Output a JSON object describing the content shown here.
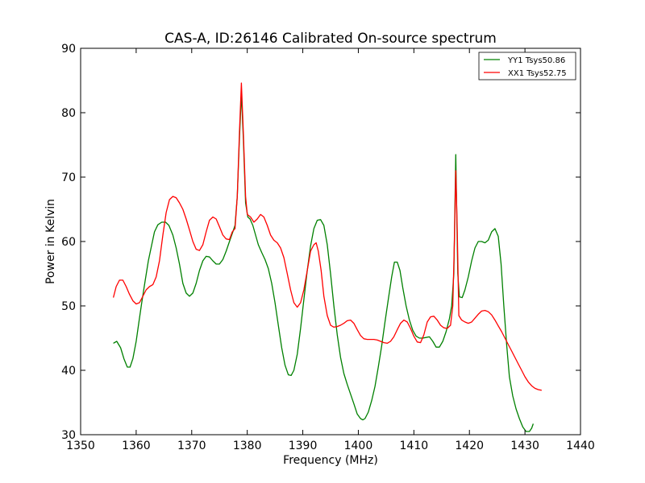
{
  "chart_data": {
    "type": "line",
    "title": "CAS-A, ID:26146 Calibrated On-source spectrum",
    "xlabel": "Frequency (MHz)",
    "ylabel": "Power in Kelvin",
    "xlim": [
      1350,
      1440
    ],
    "ylim": [
      30,
      90
    ],
    "xticks": [
      1350,
      1360,
      1370,
      1380,
      1390,
      1400,
      1410,
      1420,
      1430,
      1440
    ],
    "yticks": [
      30,
      40,
      50,
      60,
      70,
      80,
      90
    ],
    "grid": false,
    "legend": "top-right",
    "series": [
      {
        "name": "YY1 Tsys50.86",
        "color": "#008000",
        "points": [
          [
            1355.9,
            44.2
          ],
          [
            1356.5,
            44.5
          ],
          [
            1357.2,
            43.5
          ],
          [
            1357.8,
            41.8
          ],
          [
            1358.4,
            40.5
          ],
          [
            1358.9,
            40.5
          ],
          [
            1359.4,
            41.8
          ],
          [
            1360.0,
            44.5
          ],
          [
            1360.5,
            47.5
          ],
          [
            1361.0,
            50.5
          ],
          [
            1361.6,
            53.8
          ],
          [
            1362.2,
            57.0
          ],
          [
            1362.8,
            59.5
          ],
          [
            1363.3,
            61.5
          ],
          [
            1363.9,
            62.6
          ],
          [
            1364.6,
            63.0
          ],
          [
            1365.3,
            63.0
          ],
          [
            1365.9,
            62.5
          ],
          [
            1366.6,
            61.0
          ],
          [
            1367.2,
            59.0
          ],
          [
            1367.8,
            56.5
          ],
          [
            1368.4,
            53.5
          ],
          [
            1369.0,
            52.0
          ],
          [
            1369.6,
            51.5
          ],
          [
            1370.2,
            52.0
          ],
          [
            1370.8,
            53.5
          ],
          [
            1371.4,
            55.5
          ],
          [
            1372.0,
            57.0
          ],
          [
            1372.6,
            57.7
          ],
          [
            1373.2,
            57.6
          ],
          [
            1373.8,
            57.0
          ],
          [
            1374.4,
            56.5
          ],
          [
            1375.0,
            56.5
          ],
          [
            1375.6,
            57.2
          ],
          [
            1376.2,
            58.5
          ],
          [
            1376.8,
            60.0
          ],
          [
            1377.4,
            61.5
          ],
          [
            1377.8,
            62.5
          ],
          [
            1378.2,
            67.0
          ],
          [
            1378.6,
            76.0
          ],
          [
            1378.95,
            83.0
          ],
          [
            1379.3,
            76.0
          ],
          [
            1379.7,
            66.0
          ],
          [
            1380.1,
            63.8
          ],
          [
            1380.5,
            63.5
          ],
          [
            1381.0,
            62.5
          ],
          [
            1381.5,
            61.0
          ],
          [
            1382.0,
            59.5
          ],
          [
            1382.6,
            58.3
          ],
          [
            1383.2,
            57.2
          ],
          [
            1383.8,
            55.8
          ],
          [
            1384.4,
            53.5
          ],
          [
            1385.0,
            50.5
          ],
          [
            1385.6,
            47.0
          ],
          [
            1386.2,
            43.5
          ],
          [
            1386.8,
            40.8
          ],
          [
            1387.4,
            39.3
          ],
          [
            1387.9,
            39.2
          ],
          [
            1388.4,
            40.0
          ],
          [
            1389.0,
            42.5
          ],
          [
            1389.6,
            46.5
          ],
          [
            1390.2,
            51.0
          ],
          [
            1390.8,
            55.5
          ],
          [
            1391.4,
            59.3
          ],
          [
            1392.0,
            62.0
          ],
          [
            1392.6,
            63.3
          ],
          [
            1393.2,
            63.4
          ],
          [
            1393.8,
            62.5
          ],
          [
            1394.4,
            59.5
          ],
          [
            1395.0,
            55.0
          ],
          [
            1395.6,
            50.0
          ],
          [
            1396.2,
            45.5
          ],
          [
            1396.8,
            42.0
          ],
          [
            1397.4,
            39.5
          ],
          [
            1398.0,
            37.8
          ],
          [
            1398.6,
            36.3
          ],
          [
            1399.2,
            34.8
          ],
          [
            1399.8,
            33.2
          ],
          [
            1400.4,
            32.5
          ],
          [
            1400.8,
            32.3
          ],
          [
            1401.2,
            32.5
          ],
          [
            1401.8,
            33.5
          ],
          [
            1402.4,
            35.3
          ],
          [
            1403.0,
            37.5
          ],
          [
            1403.6,
            40.5
          ],
          [
            1404.2,
            43.8
          ],
          [
            1404.8,
            47.5
          ],
          [
            1405.4,
            51.0
          ],
          [
            1406.0,
            54.5
          ],
          [
            1406.5,
            56.8
          ],
          [
            1407.0,
            56.8
          ],
          [
            1407.5,
            55.5
          ],
          [
            1408.0,
            52.8
          ],
          [
            1408.6,
            50.0
          ],
          [
            1409.2,
            47.8
          ],
          [
            1409.8,
            46.2
          ],
          [
            1410.4,
            45.3
          ],
          [
            1411.0,
            45.0
          ],
          [
            1411.6,
            45.0
          ],
          [
            1412.2,
            45.1
          ],
          [
            1412.8,
            45.2
          ],
          [
            1413.4,
            44.5
          ],
          [
            1414.0,
            43.6
          ],
          [
            1414.6,
            43.6
          ],
          [
            1415.2,
            44.5
          ],
          [
            1415.8,
            46.0
          ],
          [
            1416.4,
            48.0
          ],
          [
            1416.8,
            50.0
          ],
          [
            1417.2,
            55.0
          ],
          [
            1417.55,
            73.5
          ],
          [
            1417.9,
            55.0
          ],
          [
            1418.2,
            51.4
          ],
          [
            1418.7,
            51.3
          ],
          [
            1419.2,
            52.5
          ],
          [
            1419.8,
            54.5
          ],
          [
            1420.4,
            57.0
          ],
          [
            1421.0,
            59.0
          ],
          [
            1421.6,
            60.0
          ],
          [
            1422.2,
            60.0
          ],
          [
            1422.8,
            59.8
          ],
          [
            1423.4,
            60.2
          ],
          [
            1424.0,
            61.5
          ],
          [
            1424.6,
            62.0
          ],
          [
            1425.2,
            60.8
          ],
          [
            1425.7,
            56.5
          ],
          [
            1426.2,
            50.0
          ],
          [
            1426.7,
            44.0
          ],
          [
            1427.2,
            39.0
          ],
          [
            1427.8,
            36.0
          ],
          [
            1428.4,
            34.0
          ],
          [
            1429.0,
            32.5
          ],
          [
            1429.6,
            31.2
          ],
          [
            1430.2,
            30.5
          ],
          [
            1430.8,
            30.5
          ],
          [
            1431.2,
            31.0
          ],
          [
            1431.5,
            31.7
          ]
        ]
      },
      {
        "name": "XX1 Tsys52.75",
        "color": "#ff0000",
        "points": [
          [
            1355.9,
            51.3
          ],
          [
            1356.4,
            53.0
          ],
          [
            1357.0,
            54.0
          ],
          [
            1357.6,
            54.0
          ],
          [
            1358.2,
            53.0
          ],
          [
            1358.8,
            51.8
          ],
          [
            1359.4,
            50.8
          ],
          [
            1360.0,
            50.3
          ],
          [
            1360.6,
            50.5
          ],
          [
            1361.2,
            51.5
          ],
          [
            1361.8,
            52.5
          ],
          [
            1362.4,
            53.0
          ],
          [
            1363.0,
            53.3
          ],
          [
            1363.6,
            54.5
          ],
          [
            1364.2,
            57.0
          ],
          [
            1364.8,
            61.0
          ],
          [
            1365.4,
            64.5
          ],
          [
            1366.0,
            66.5
          ],
          [
            1366.6,
            67.0
          ],
          [
            1367.2,
            66.8
          ],
          [
            1367.8,
            66.0
          ],
          [
            1368.4,
            65.0
          ],
          [
            1369.0,
            63.5
          ],
          [
            1369.6,
            61.8
          ],
          [
            1370.2,
            60.0
          ],
          [
            1370.8,
            58.8
          ],
          [
            1371.4,
            58.6
          ],
          [
            1372.0,
            59.5
          ],
          [
            1372.6,
            61.5
          ],
          [
            1373.2,
            63.3
          ],
          [
            1373.8,
            63.8
          ],
          [
            1374.4,
            63.5
          ],
          [
            1375.0,
            62.3
          ],
          [
            1375.6,
            61.0
          ],
          [
            1376.2,
            60.4
          ],
          [
            1376.8,
            60.3
          ],
          [
            1377.3,
            61.5
          ],
          [
            1377.8,
            62.0
          ],
          [
            1378.2,
            67.0
          ],
          [
            1378.6,
            77.0
          ],
          [
            1378.95,
            84.6
          ],
          [
            1379.3,
            77.0
          ],
          [
            1379.7,
            67.0
          ],
          [
            1380.0,
            64.2
          ],
          [
            1380.6,
            63.8
          ],
          [
            1381.2,
            63.0
          ],
          [
            1381.8,
            63.5
          ],
          [
            1382.4,
            64.2
          ],
          [
            1383.0,
            63.8
          ],
          [
            1383.6,
            62.5
          ],
          [
            1384.2,
            61.0
          ],
          [
            1384.8,
            60.2
          ],
          [
            1385.4,
            59.8
          ],
          [
            1386.0,
            59.0
          ],
          [
            1386.6,
            57.5
          ],
          [
            1387.2,
            55.0
          ],
          [
            1387.8,
            52.5
          ],
          [
            1388.4,
            50.5
          ],
          [
            1389.0,
            49.8
          ],
          [
            1389.6,
            50.5
          ],
          [
            1390.2,
            52.5
          ],
          [
            1390.8,
            55.5
          ],
          [
            1391.4,
            58.5
          ],
          [
            1392.0,
            59.5
          ],
          [
            1392.4,
            59.8
          ],
          [
            1392.8,
            58.5
          ],
          [
            1393.3,
            55.5
          ],
          [
            1393.8,
            51.5
          ],
          [
            1394.4,
            48.5
          ],
          [
            1395.0,
            47.0
          ],
          [
            1395.6,
            46.7
          ],
          [
            1396.2,
            46.8
          ],
          [
            1396.8,
            47.0
          ],
          [
            1397.4,
            47.3
          ],
          [
            1398.0,
            47.7
          ],
          [
            1398.6,
            47.8
          ],
          [
            1399.2,
            47.3
          ],
          [
            1399.8,
            46.3
          ],
          [
            1400.4,
            45.4
          ],
          [
            1401.0,
            44.9
          ],
          [
            1401.6,
            44.8
          ],
          [
            1402.2,
            44.8
          ],
          [
            1402.8,
            44.8
          ],
          [
            1403.4,
            44.7
          ],
          [
            1404.0,
            44.5
          ],
          [
            1404.6,
            44.3
          ],
          [
            1405.2,
            44.2
          ],
          [
            1405.8,
            44.5
          ],
          [
            1406.4,
            45.2
          ],
          [
            1407.0,
            46.3
          ],
          [
            1407.6,
            47.3
          ],
          [
            1408.2,
            47.8
          ],
          [
            1408.8,
            47.5
          ],
          [
            1409.4,
            46.5
          ],
          [
            1410.0,
            45.3
          ],
          [
            1410.6,
            44.4
          ],
          [
            1411.2,
            44.3
          ],
          [
            1411.8,
            45.5
          ],
          [
            1412.4,
            47.5
          ],
          [
            1413.0,
            48.3
          ],
          [
            1413.6,
            48.4
          ],
          [
            1414.2,
            47.8
          ],
          [
            1414.8,
            47.0
          ],
          [
            1415.4,
            46.6
          ],
          [
            1416.0,
            46.5
          ],
          [
            1416.6,
            47.0
          ],
          [
            1417.0,
            50.0
          ],
          [
            1417.3,
            60.0
          ],
          [
            1417.55,
            71.0
          ],
          [
            1417.8,
            62.0
          ],
          [
            1418.1,
            48.5
          ],
          [
            1418.6,
            47.8
          ],
          [
            1419.2,
            47.5
          ],
          [
            1419.8,
            47.3
          ],
          [
            1420.4,
            47.5
          ],
          [
            1421.0,
            48.1
          ],
          [
            1421.6,
            48.7
          ],
          [
            1422.2,
            49.2
          ],
          [
            1422.8,
            49.3
          ],
          [
            1423.4,
            49.1
          ],
          [
            1424.0,
            48.6
          ],
          [
            1424.6,
            47.8
          ],
          [
            1425.2,
            46.9
          ],
          [
            1425.8,
            46.0
          ],
          [
            1426.4,
            45.0
          ],
          [
            1427.0,
            44.0
          ],
          [
            1427.6,
            43.0
          ],
          [
            1428.2,
            42.0
          ],
          [
            1428.8,
            41.0
          ],
          [
            1429.4,
            40.0
          ],
          [
            1430.0,
            39.0
          ],
          [
            1430.6,
            38.2
          ],
          [
            1431.2,
            37.6
          ],
          [
            1431.8,
            37.2
          ],
          [
            1432.4,
            37.0
          ],
          [
            1433.0,
            36.9
          ]
        ]
      }
    ]
  }
}
